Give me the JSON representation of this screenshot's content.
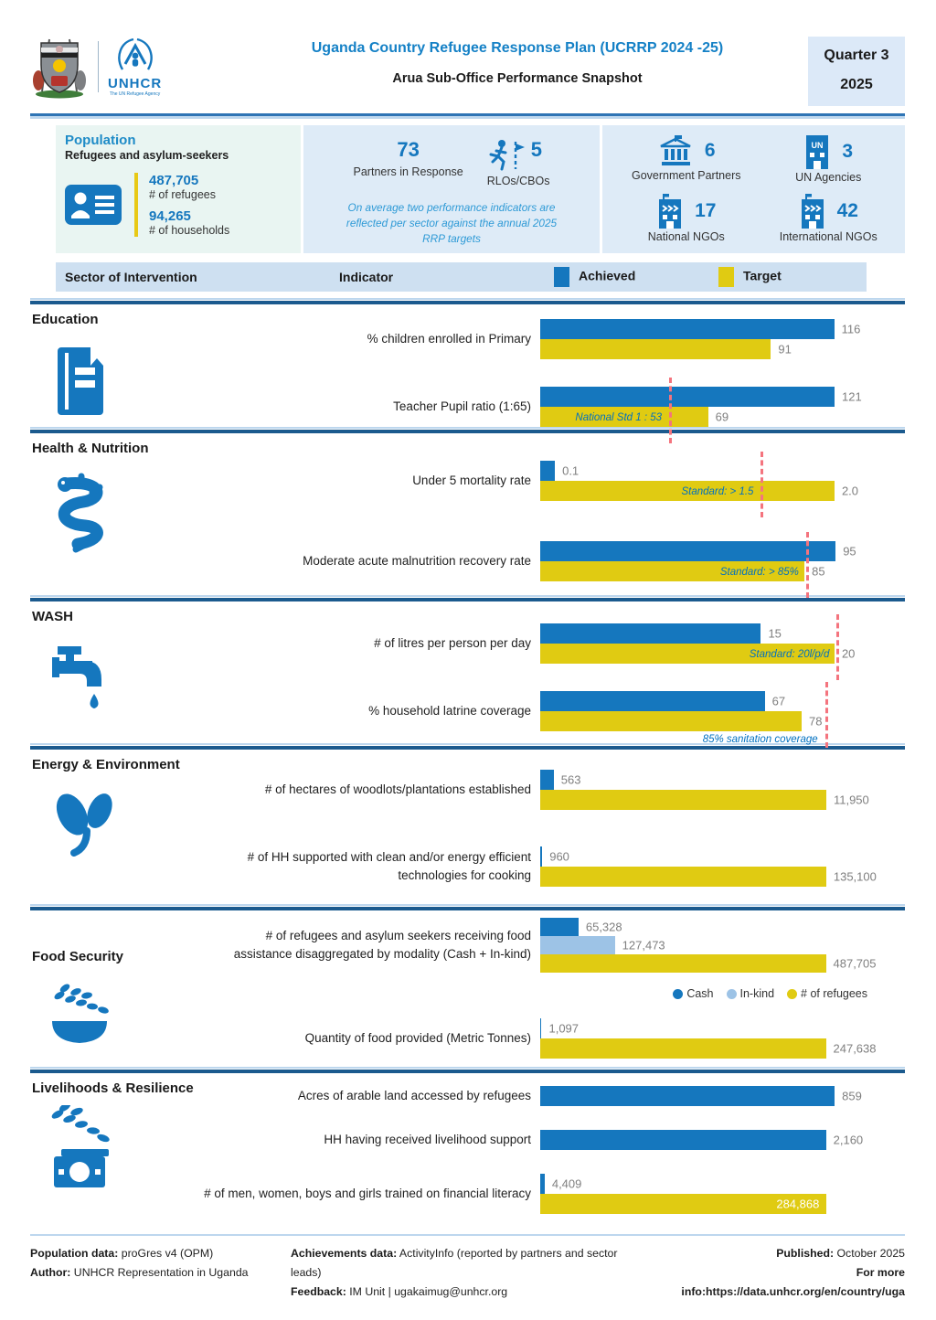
{
  "header": {
    "title": "Uganda Country Refugee Response Plan (UCRRP 2024 -25)",
    "subtitle": "Arua Sub-Office Performance Snapshot",
    "quarter": "Quarter 3",
    "year": "2025",
    "unhcr_wordmark": "UNHCR",
    "unhcr_tagline": "The UN Refugee Agency"
  },
  "population": {
    "title": "Population",
    "subtitle": "Refugees and asylum-seekers",
    "refugees_value": "487,705",
    "refugees_label": "# of refugees",
    "households_value": "94,265",
    "households_label": "# of households"
  },
  "partners": {
    "partners_value": "73",
    "partners_label": "Partners in Response",
    "rlos_value": "5",
    "rlos_label": "RLOs/CBOs",
    "note_line1": "On average two performance indicators are",
    "note_line2": "reflected per sector against the annual 2025",
    "note_line3": "RRP targets",
    "grid": [
      {
        "value": "6",
        "label": "Government Partners",
        "icon": "government-icon"
      },
      {
        "value": "3",
        "label": "UN Agencies",
        "icon": "un-agency-icon"
      },
      {
        "value": "17",
        "label": "National NGOs",
        "icon": "national-ngo-icon"
      },
      {
        "value": "42",
        "label": "International NGOs",
        "icon": "international-ngo-icon"
      }
    ]
  },
  "legend": {
    "col1": "Sector of Intervention",
    "col2": "Indicator",
    "achieved": "Achieved",
    "target": "Target"
  },
  "colors": {
    "achieved": "#1577BE",
    "target": "#E0CB12",
    "cash": "#1577BE",
    "inkind": "#9DC3E6",
    "accent_navy": "#1B5A8E",
    "ref_line": "#F4747E",
    "annotation": "#0070C0"
  },
  "chart_data": [
    {
      "type": "bar",
      "section": "Education",
      "icon": "book-icon",
      "rows": [
        {
          "indicator_lines": [
            "% children enrolled in Primary"
          ],
          "axis_max": 119,
          "bars": [
            {
              "series": "Achieved",
              "value": 116,
              "label": "116",
              "color": "achieved"
            },
            {
              "series": "Target",
              "value": 91,
              "label": "91",
              "color": "target"
            }
          ]
        },
        {
          "indicator_lines": [
            "Teacher Pupil ratio (1:65)"
          ],
          "axis_max": 124,
          "bars": [
            {
              "series": "Achieved",
              "value": 121,
              "label": "121",
              "color": "achieved"
            },
            {
              "series": "Target",
              "value": 69,
              "label": "69",
              "color": "target"
            }
          ],
          "ref_line": {
            "value": 53,
            "label": "National Std 1 : 53"
          }
        }
      ]
    },
    {
      "type": "bar",
      "section": "Health & Nutrition",
      "icon": "medical-snake-icon",
      "rows": [
        {
          "indicator_lines": [
            "Under 5 mortality rate"
          ],
          "axis_max": 2.05,
          "bars": [
            {
              "series": "Achieved",
              "value": 0.1,
              "label": "0.1",
              "color": "achieved"
            },
            {
              "series": "Target",
              "value": 2.0,
              "label": "2.0",
              "color": "target"
            }
          ],
          "ref_line": {
            "value": 1.5,
            "label": "Standard: > 1.5"
          }
        },
        {
          "indicator_lines": [
            "Moderate acute malnutrition recovery rate"
          ],
          "axis_max": 97,
          "bars": [
            {
              "series": "Achieved",
              "value": 95,
              "label": "95",
              "color": "achieved"
            },
            {
              "series": "Target",
              "value": 85,
              "label": "85",
              "color": "target"
            }
          ],
          "ref_line": {
            "value": 85.5,
            "label": "Standard: > 85%"
          }
        }
      ]
    },
    {
      "type": "bar",
      "section": "WASH",
      "icon": "water-tap-icon",
      "rows": [
        {
          "indicator_lines": [
            "# of litres per person per day"
          ],
          "axis_max": 20.5,
          "bars": [
            {
              "series": "Achieved",
              "value": 15,
              "label": "15",
              "color": "achieved"
            },
            {
              "series": "Target",
              "value": 20,
              "label": "20",
              "color": "target"
            }
          ],
          "ref_line": {
            "value": 20.15,
            "label": "Standard: 20l/p/d"
          }
        },
        {
          "indicator_lines": [
            "% household latrine coverage"
          ],
          "axis_max": 90,
          "bars": [
            {
              "series": "Achieved",
              "value": 67,
              "label": "67",
              "color": "achieved"
            },
            {
              "series": "Target",
              "value": 78,
              "label": "78",
              "color": "target"
            }
          ],
          "ref_line": {
            "value": 85,
            "label": "85% sanitation coverage",
            "below": true
          }
        }
      ]
    },
    {
      "type": "bar",
      "section": "Energy & Environment",
      "icon": "plant-icon",
      "rows": [
        {
          "indicator_lines": [
            "# of hectares of woodlots/plantations established"
          ],
          "axis_max": 12600,
          "bars": [
            {
              "series": "Achieved",
              "value": 563,
              "label": "563",
              "color": "achieved"
            },
            {
              "series": "Target",
              "value": 11950,
              "label": "11,950",
              "color": "target"
            }
          ]
        },
        {
          "indicator_lines": [
            "# of HH supported with clean and/or energy efficient",
            "technologies for cooking"
          ],
          "axis_max": 142500,
          "bars": [
            {
              "series": "Achieved",
              "value": 960,
              "label": "960",
              "color": "achieved"
            },
            {
              "series": "Target",
              "value": 135100,
              "label": "135,100",
              "color": "target"
            }
          ]
        }
      ]
    },
    {
      "type": "bar",
      "section": "Food Security",
      "icon": "food-bowl-icon",
      "rows": [
        {
          "indicator_lines": [
            "# of refugees and asylum seekers receiving food",
            "assistance disaggregated by modality (Cash + In-kind)"
          ],
          "axis_max": 515000,
          "bars": [
            {
              "series": "Cash",
              "value": 65328,
              "label": "65,328",
              "color": "cash"
            },
            {
              "series": "In-kind",
              "value": 127473,
              "label": "127,473",
              "color": "inkind"
            },
            {
              "series": "# of refugees",
              "value": 487705,
              "label": "487,705",
              "color": "target"
            }
          ],
          "legend": [
            {
              "label": "Cash",
              "color": "cash"
            },
            {
              "label": "In-kind",
              "color": "inkind"
            },
            {
              "label": "# of refugees",
              "color": "target"
            }
          ]
        },
        {
          "indicator_lines": [
            "Quantity of food provided (Metric Tonnes)"
          ],
          "axis_max": 261500,
          "bars": [
            {
              "series": "Achieved",
              "value": 1097,
              "label": "1,097",
              "color": "achieved"
            },
            {
              "series": "Target",
              "value": 247638,
              "label": "247,638",
              "color": "target"
            }
          ]
        }
      ]
    },
    {
      "type": "bar",
      "section": "Livelihoods & Resilience",
      "icon": "wheat-money-icon",
      "rows": [
        {
          "indicator_lines": [
            "Acres of arable land accessed by refugees"
          ],
          "axis_max": 880,
          "bars": [
            {
              "series": "Achieved",
              "value": 859,
              "label": "859",
              "color": "achieved"
            }
          ]
        },
        {
          "indicator_lines": [
            "HH having received livelihood support"
          ],
          "axis_max": 2280,
          "bars": [
            {
              "series": "Achieved",
              "value": 2160,
              "label": "2,160",
              "color": "achieved"
            }
          ]
        },
        {
          "indicator_lines": [
            "# of men, women, boys and girls trained on financial literacy"
          ],
          "axis_max": 300000,
          "bars": [
            {
              "series": "Achieved",
              "value": 4409,
              "label": "4,409",
              "color": "achieved"
            },
            {
              "series": "Target",
              "value": 284868,
              "label": "284,868",
              "color": "target",
              "label_inside": true
            }
          ]
        }
      ]
    }
  ],
  "footer": {
    "col1": [
      {
        "label": "Population data:",
        "value": " proGres v4 (OPM)"
      },
      {
        "label": "Author:",
        "value": " UNHCR Representation in Uganda"
      }
    ],
    "col2": [
      {
        "label": "Achievements data:",
        "value": " ActivityInfo (reported by partners and sector leads)"
      },
      {
        "label": "Feedback:",
        "value": " IM Unit | ugakaimug@unhcr.org"
      }
    ],
    "col3": [
      {
        "label": "Published:",
        "value": " October 2025"
      },
      {
        "label": "For more info:",
        "value": "https://data.unhcr.org/en/country/uga"
      }
    ]
  }
}
